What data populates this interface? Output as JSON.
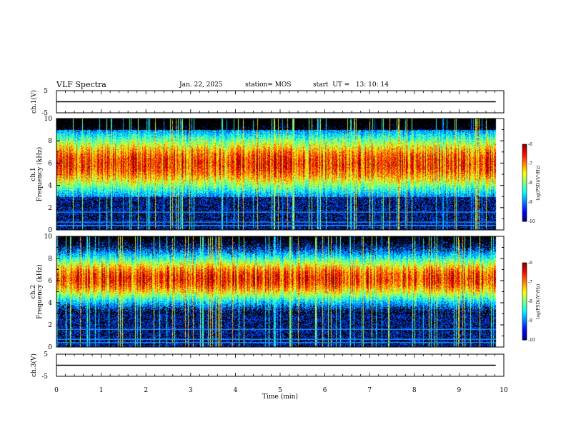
{
  "header": {
    "title": "VLF Spectra",
    "date": "Jan. 22, 2025",
    "station": "station= MOS",
    "start": "start  UT =   13: 10: 14"
  },
  "chart_data": [
    {
      "type": "line",
      "ylabel": "ch.1(V)",
      "yticks": [
        "5",
        "-5"
      ],
      "ylim": [
        -5,
        5
      ],
      "x": [
        0,
        9.82
      ],
      "values": [
        0,
        0
      ],
      "xlim": [
        0,
        10
      ]
    },
    {
      "type": "heatmap",
      "ylabel_line1": "ch.1",
      "ylabel_line2": "Frequency (kHz)",
      "yticks": [
        "0",
        "2",
        "4",
        "6",
        "8",
        "10"
      ],
      "ylim": [
        0,
        10
      ],
      "xlim": [
        0,
        10
      ],
      "data_xlim": [
        0,
        9.82
      ],
      "colorbar": {
        "label": "log(PSD)(V²/Hz)",
        "ticks": [
          "-6",
          "-7",
          "-8",
          "-9",
          "-10"
        ],
        "range": [
          -10,
          -6
        ]
      },
      "band_center_khz": 6.0,
      "band_halfwidth_khz": 2.8,
      "band_upper_edge_khz": 9.0,
      "line_freqs_khz": [
        0.4,
        0.7,
        1.6
      ]
    },
    {
      "type": "heatmap",
      "ylabel_line1": "ch.2",
      "ylabel_line2": "Frequency (kHz)",
      "yticks": [
        "0",
        "2",
        "4",
        "6",
        "8",
        "10"
      ],
      "ylim": [
        0,
        10
      ],
      "xlim": [
        0,
        10
      ],
      "data_xlim": [
        0,
        9.82
      ],
      "colorbar": {
        "label": "log(PSD)(V²/Hz)",
        "ticks": [
          "-6",
          "-7",
          "-8",
          "-9",
          "-10"
        ],
        "range": [
          -10,
          -6
        ]
      },
      "band_center_khz": 6.2,
      "band_halfwidth_khz": 2.2,
      "line_freqs_khz": [
        0.4,
        0.7,
        1.6
      ]
    },
    {
      "type": "line",
      "ylabel": "ch.3(V)",
      "yticks": [
        "5",
        "-5"
      ],
      "ylim": [
        -5,
        5
      ],
      "x": [
        0,
        9.82
      ],
      "values": [
        0,
        0
      ],
      "xlim": [
        0,
        10
      ]
    }
  ],
  "xaxis": {
    "label": "Time  (min)",
    "ticks": [
      "0",
      "1",
      "2",
      "3",
      "4",
      "5",
      "6",
      "7",
      "8",
      "9",
      "10"
    ]
  }
}
